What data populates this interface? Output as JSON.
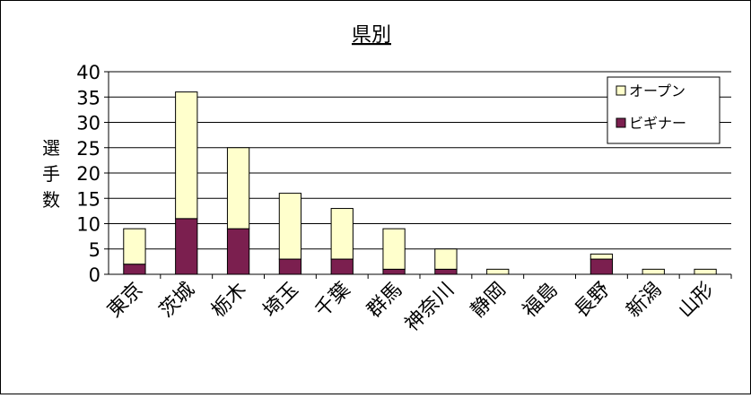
{
  "chart_data": {
    "type": "bar",
    "stacked": true,
    "title": "県別",
    "ylabel": "選手数",
    "xlabel": "",
    "ylim": [
      0,
      40
    ],
    "yticks": [
      0,
      5,
      10,
      15,
      20,
      25,
      30,
      35,
      40
    ],
    "grid": true,
    "legend_position": "top-right",
    "categories": [
      "東京",
      "茨城",
      "栃木",
      "埼玉",
      "千葉",
      "群馬",
      "神奈川",
      "静岡",
      "福島",
      "長野",
      "新潟",
      "山形"
    ],
    "series": [
      {
        "name": "ビギナー",
        "color": "#7b1f4f",
        "values": [
          2,
          11,
          9,
          3,
          3,
          1,
          1,
          0,
          0,
          3,
          0,
          0
        ]
      },
      {
        "name": "オープン",
        "color": "#ffffcc",
        "values": [
          7,
          25,
          16,
          13,
          10,
          8,
          4,
          1,
          0,
          1,
          1,
          1
        ]
      }
    ]
  }
}
